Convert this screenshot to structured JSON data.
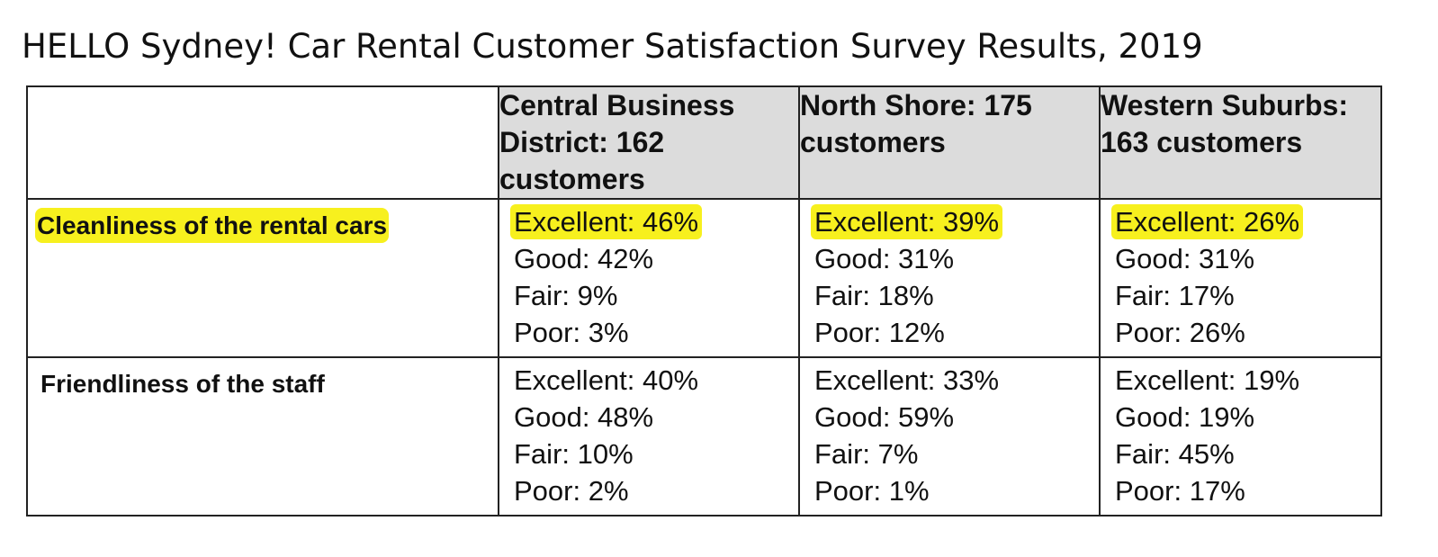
{
  "title": "HELLO Sydney! Car Rental Customer Satisfaction Survey Results, 2019",
  "colors": {
    "highlight": "#f7f01e",
    "header_bg": "#dcdcdc",
    "border": "#222222"
  },
  "table": {
    "headers": [
      "",
      "Central Business District: 162 customers",
      "North Shore: 175 customers",
      "Western Suburbs: 163 customers"
    ],
    "rows": [
      {
        "label": "Cleanliness of the rental cars",
        "cells": [
          [
            "Excellent: 46%",
            "Good: 42%",
            "Fair: 9%",
            "Poor: 3%"
          ],
          [
            "Excellent: 39%",
            "Good: 31%",
            "Fair: 18%",
            "Poor: 12%"
          ],
          [
            "Excellent: 26%",
            "Good: 31%",
            "Fair: 17%",
            "Poor: 26%"
          ]
        ]
      },
      {
        "label": "Friendliness of the staff",
        "cells": [
          [
            "Excellent: 40%",
            "Good: 48%",
            "Fair: 10%",
            "Poor: 2%"
          ],
          [
            "Excellent: 33%",
            "Good: 59%",
            "Fair: 7%",
            "Poor: 1%"
          ],
          [
            "Excellent: 19%",
            "Good: 19%",
            "Fair: 45%",
            "Poor: 17%"
          ]
        ]
      }
    ]
  }
}
